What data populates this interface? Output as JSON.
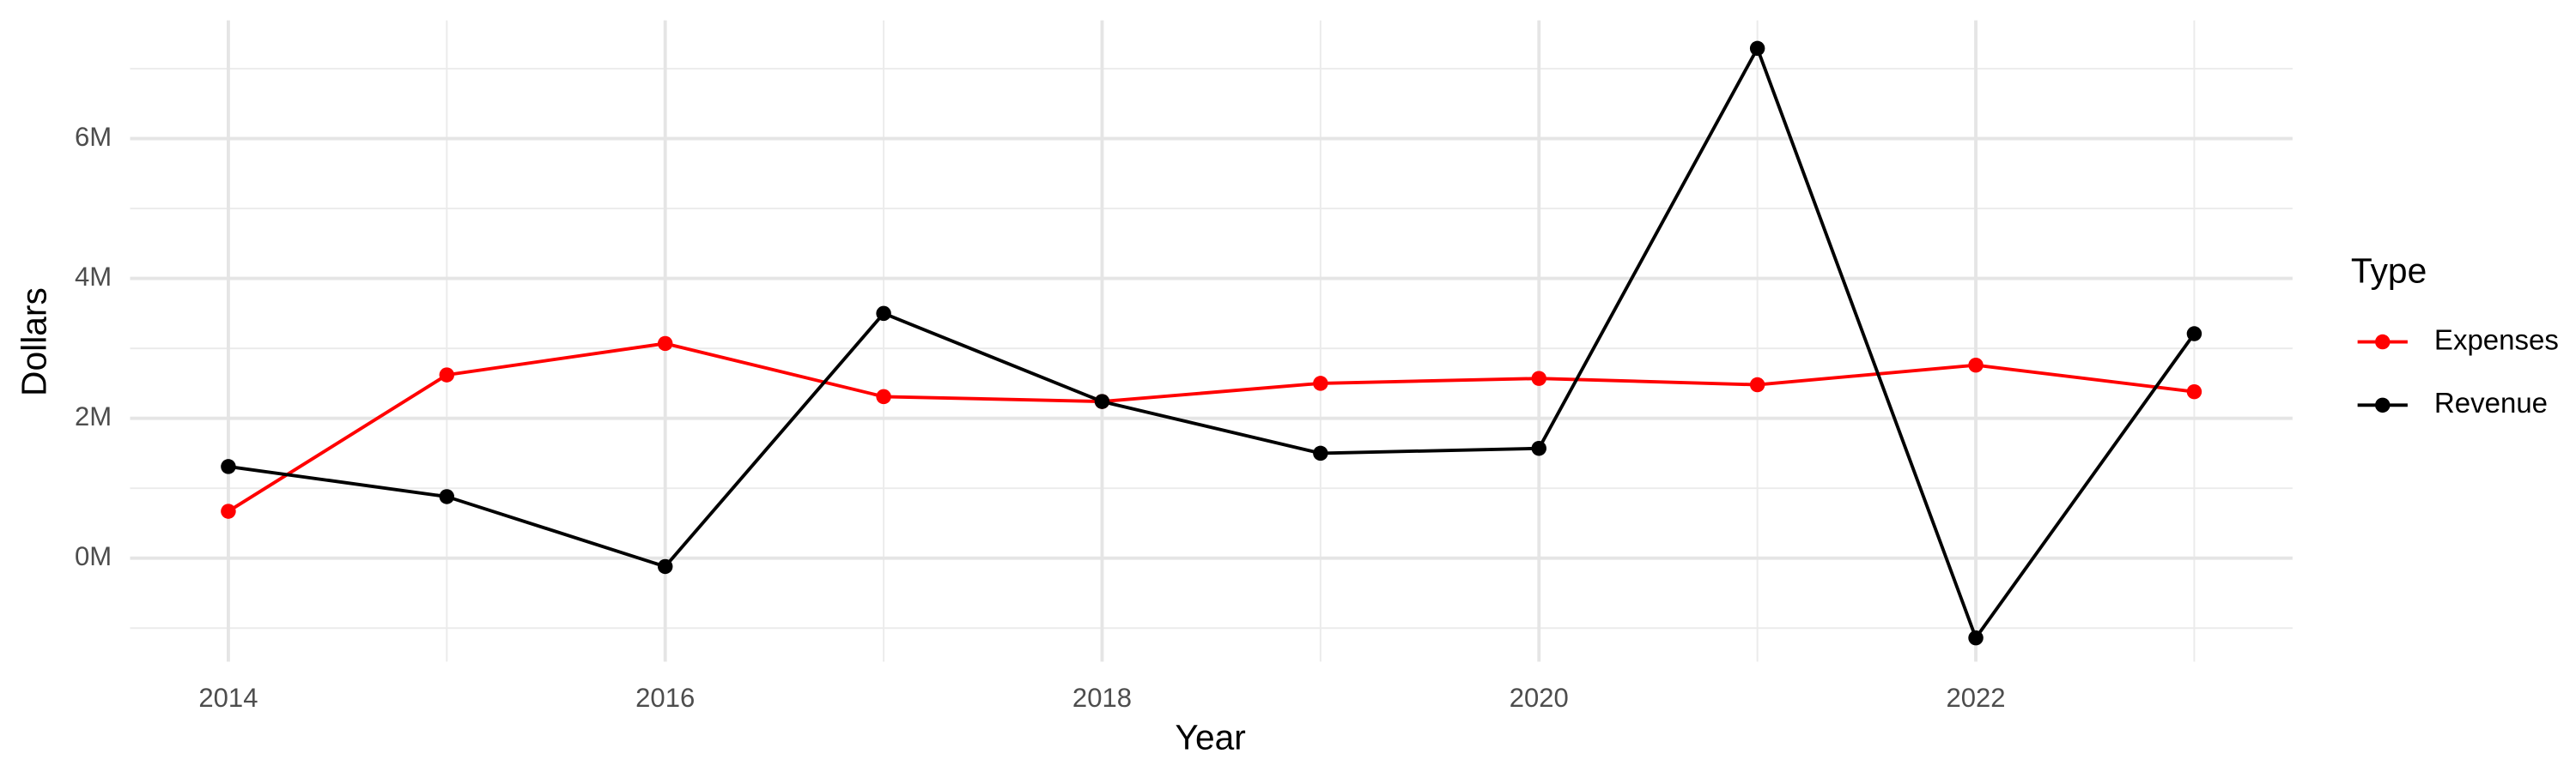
{
  "chart_data": {
    "type": "line",
    "x_label": "Year",
    "y_label": "Dollars",
    "legend_title": "Type",
    "x": [
      2014,
      2015,
      2016,
      2017,
      2018,
      2019,
      2020,
      2021,
      2022,
      2023
    ],
    "series": [
      {
        "name": "Expenses",
        "color": "#ff0000",
        "values": [
          670000,
          2620000,
          3070000,
          2310000,
          2240000,
          2500000,
          2570000,
          2480000,
          2760000,
          2380000
        ]
      },
      {
        "name": "Revenue",
        "color": "#000000",
        "values": [
          1310000,
          880000,
          -120000,
          3500000,
          2240000,
          1500000,
          1570000,
          7290000,
          -1140000,
          3210000
        ]
      }
    ],
    "xlim": [
      2013.55,
      2023.45
    ],
    "xticks": [
      2014,
      2016,
      2018,
      2020,
      2022
    ],
    "ylim": [
      -1480000,
      7690000
    ],
    "yticks": [
      {
        "value": 0,
        "label": "0M"
      },
      {
        "value": 2000000,
        "label": "2M"
      },
      {
        "value": 4000000,
        "label": "4M"
      },
      {
        "value": 6000000,
        "label": "6M"
      }
    ],
    "grid": true,
    "legend": "right"
  }
}
